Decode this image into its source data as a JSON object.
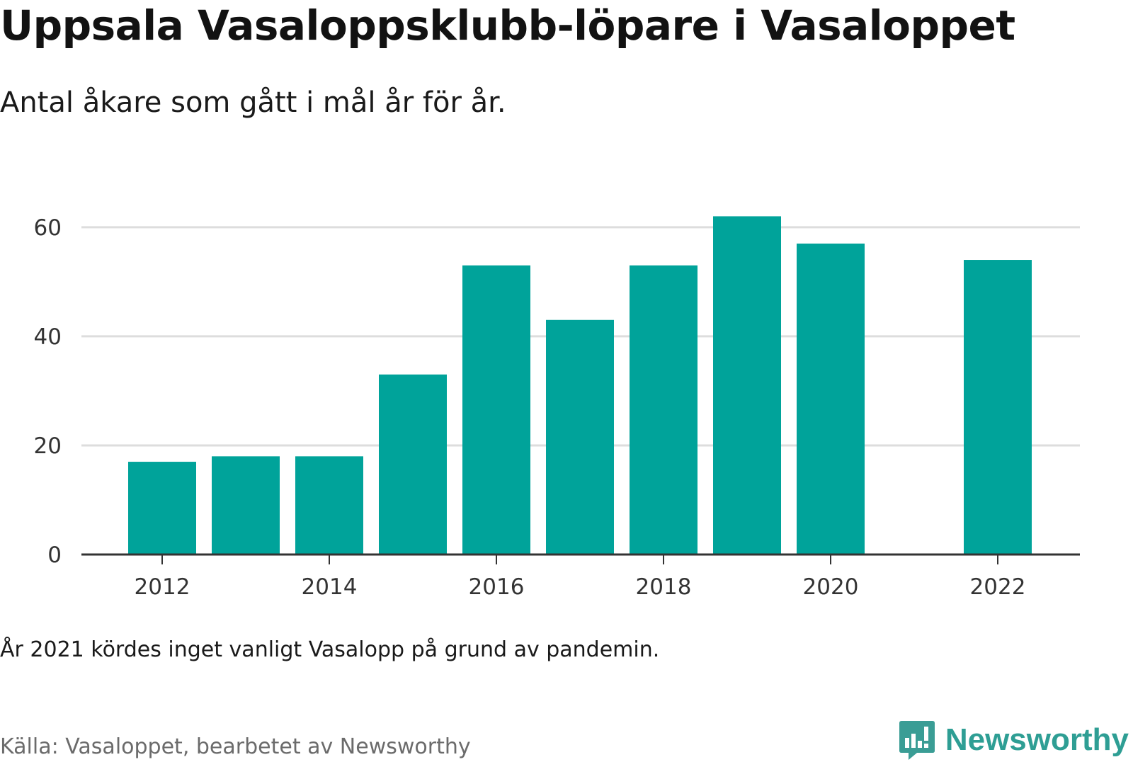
{
  "title": "Uppsala Vasaloppsklubb-löpare i Vasaloppet",
  "subtitle": "Antal åkare som gått i mål år för år.",
  "note": "År 2021 kördes inget vanligt Vasalopp på grund av pandemin.",
  "source": "Källa: Vasaloppet, bearbetet av Newsworthy",
  "brand": {
    "name": "Newsworthy",
    "icon": "newsworthy-logo-icon",
    "color": "#2e9e94"
  },
  "colors": {
    "bar": "#00a39a",
    "grid": "#dddddd",
    "axis": "#333333",
    "tick_label": "#333333"
  },
  "chart_data": {
    "type": "bar",
    "categories": [
      2012,
      2013,
      2014,
      2015,
      2016,
      2017,
      2018,
      2019,
      2020,
      2021,
      2022
    ],
    "values": [
      17,
      18,
      18,
      33,
      53,
      43,
      53,
      62,
      57,
      null,
      54
    ],
    "x_tick_labels": [
      "2012",
      "2014",
      "2016",
      "2018",
      "2020",
      "2022"
    ],
    "y_tick_labels": [
      "0",
      "20",
      "40",
      "60"
    ],
    "y_ticks": [
      0,
      20,
      40,
      60
    ],
    "ylim": [
      0,
      64
    ],
    "xlabel": "",
    "ylabel": "",
    "grid": true,
    "legend": "none"
  }
}
